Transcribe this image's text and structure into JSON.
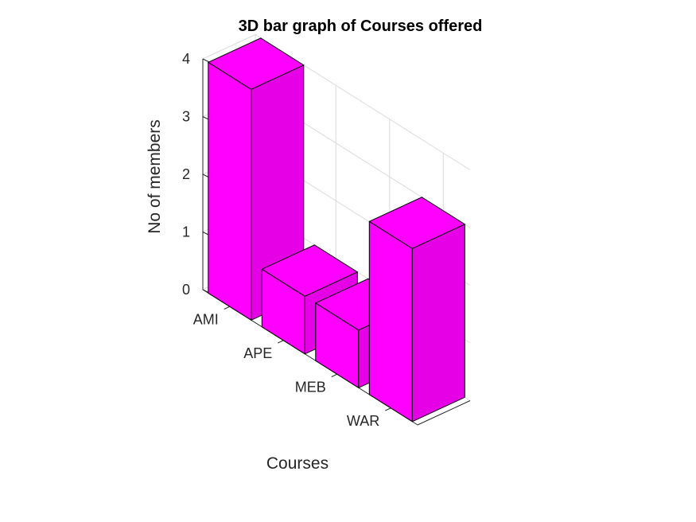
{
  "chart_data": {
    "type": "bar",
    "subtype": "3d",
    "title": "3D bar graph of Courses offered",
    "xlabel": "Courses",
    "ylabel": "No of members",
    "categories": [
      "AMI",
      "APE",
      "MEB",
      "WAR"
    ],
    "values": [
      4,
      1,
      1,
      3
    ],
    "ylim": [
      0,
      4
    ],
    "yticks": [
      "0",
      "1",
      "2",
      "3",
      "4"
    ],
    "grid": true,
    "colors": {
      "bar": "#ff00ff",
      "bar_side": "#e600e6",
      "bar_top": "#ff00ff"
    }
  }
}
